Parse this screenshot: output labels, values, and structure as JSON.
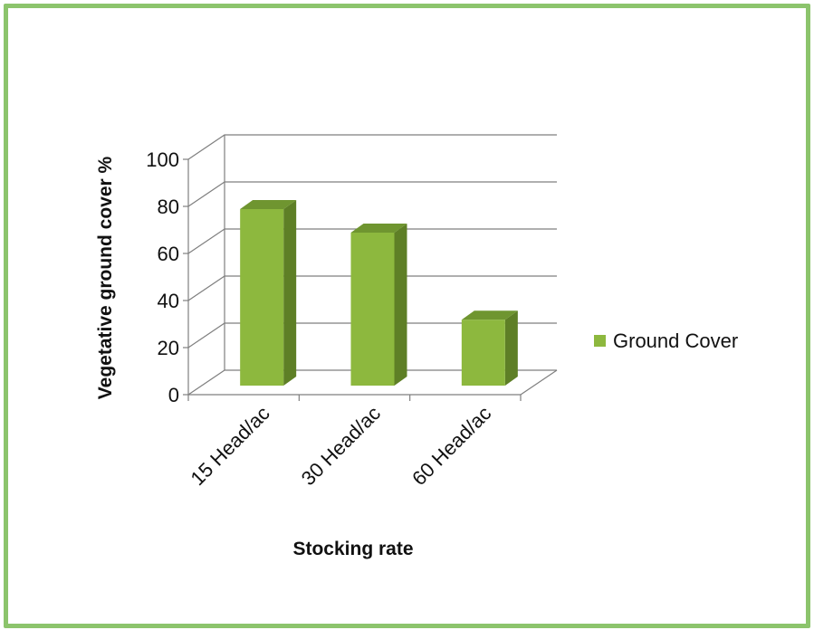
{
  "chart_data": {
    "type": "bar",
    "categories": [
      "15 Head/ac",
      "30 Head/ac",
      "60 Head/ac"
    ],
    "series": [
      {
        "name": "Ground Cover",
        "values": [
          75,
          65,
          28
        ]
      }
    ],
    "title": "",
    "xlabel": "Stocking rate",
    "ylabel": "Vegetative ground cover %",
    "ylim": [
      0,
      100
    ],
    "yticks": [
      0,
      20,
      40,
      60,
      80,
      100
    ],
    "grid": true,
    "legend_position": "right",
    "three_d": true,
    "colors": {
      "bar_front": "#8db83e",
      "bar_side": "#5e7f26",
      "bar_top": "#6f9530",
      "frame": "#8cc46c",
      "gridline": "#7f7f7f"
    }
  }
}
